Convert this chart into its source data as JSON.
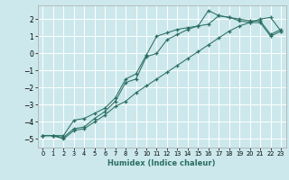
{
  "title": "",
  "xlabel": "Humidex (Indice chaleur)",
  "xlim": [
    -0.5,
    23.5
  ],
  "ylim": [
    -5.5,
    2.8
  ],
  "xticks": [
    0,
    1,
    2,
    3,
    4,
    5,
    6,
    7,
    8,
    9,
    10,
    11,
    12,
    13,
    14,
    15,
    16,
    17,
    18,
    19,
    20,
    21,
    22,
    23
  ],
  "yticks": [
    -5,
    -4,
    -3,
    -2,
    -1,
    0,
    1,
    2
  ],
  "bg_color": "#cce8ec",
  "grid_color": "#ffffff",
  "line_color": "#2a6e62",
  "line1_x": [
    0,
    1,
    2,
    3,
    4,
    5,
    6,
    7,
    8,
    9,
    10,
    11,
    12,
    13,
    14,
    15,
    16,
    17,
    18,
    19,
    20,
    21,
    22,
    23
  ],
  "line1_y": [
    -4.8,
    -4.8,
    -4.8,
    -3.9,
    -3.8,
    -3.5,
    -3.2,
    -2.6,
    -1.5,
    -1.2,
    -0.1,
    1.0,
    1.2,
    1.4,
    1.5,
    1.6,
    2.5,
    2.2,
    2.1,
    2.0,
    1.9,
    1.9,
    1.1,
    1.4
  ],
  "line2_x": [
    0,
    1,
    2,
    3,
    4,
    5,
    6,
    7,
    8,
    9,
    10,
    11,
    12,
    13,
    14,
    15,
    16,
    17,
    18,
    19,
    20,
    21,
    22,
    23
  ],
  "line2_y": [
    -4.8,
    -4.8,
    -4.9,
    -4.4,
    -4.3,
    -3.8,
    -3.4,
    -2.8,
    -1.7,
    -1.5,
    -0.2,
    0.0,
    0.8,
    1.1,
    1.4,
    1.6,
    1.7,
    2.2,
    2.1,
    1.9,
    1.8,
    1.8,
    1.0,
    1.3
  ],
  "line3_x": [
    0,
    1,
    2,
    3,
    4,
    5,
    6,
    7,
    8,
    9,
    10,
    11,
    12,
    13,
    14,
    15,
    16,
    17,
    18,
    19,
    20,
    21,
    22,
    23
  ],
  "line3_y": [
    -4.8,
    -4.8,
    -5.0,
    -4.5,
    -4.4,
    -4.0,
    -3.6,
    -3.1,
    -2.8,
    -2.3,
    -1.9,
    -1.5,
    -1.1,
    -0.7,
    -0.3,
    0.1,
    0.5,
    0.9,
    1.3,
    1.6,
    1.8,
    2.0,
    2.1,
    1.3
  ]
}
